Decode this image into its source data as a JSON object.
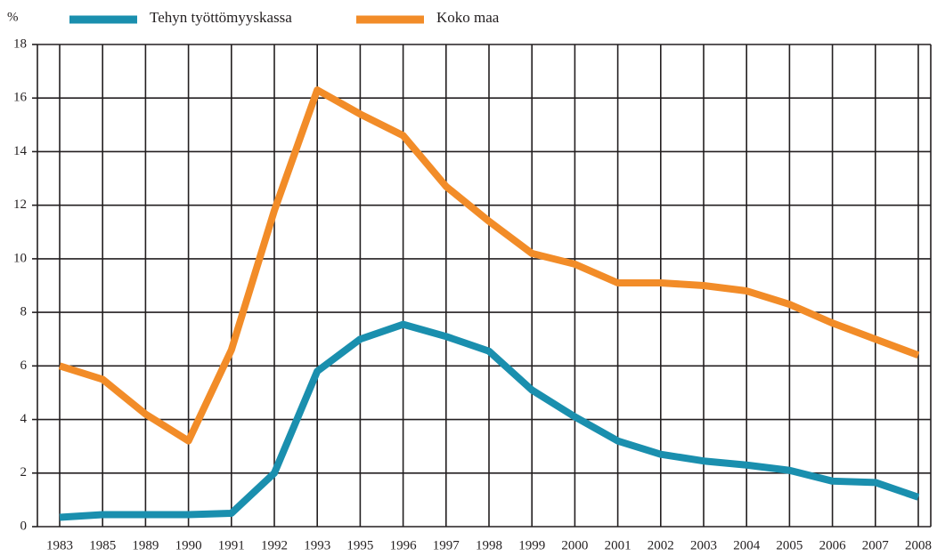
{
  "chart_data": {
    "type": "line",
    "y_label": "%",
    "categories": [
      "1983",
      "1985",
      "1989",
      "1990",
      "1991",
      "1992",
      "1993",
      "1995",
      "1996",
      "1997",
      "1998",
      "1999",
      "2000",
      "2001",
      "2002",
      "2003",
      "2004",
      "2005",
      "2006",
      "2007",
      "2008"
    ],
    "series": [
      {
        "name": "Tehyn työttömyyskassa",
        "color": "#1a8fae",
        "values": [
          0.35,
          0.45,
          0.45,
          0.45,
          0.5,
          2.0,
          5.8,
          7.0,
          7.55,
          7.1,
          6.55,
          5.1,
          4.1,
          3.2,
          2.7,
          2.45,
          2.3,
          2.1,
          1.7,
          1.65,
          1.1
        ]
      },
      {
        "name": "Koko maa",
        "color": "#f28c28",
        "values": [
          6.0,
          5.5,
          4.2,
          3.2,
          6.6,
          11.8,
          16.3,
          15.4,
          14.6,
          12.7,
          11.4,
          10.2,
          9.8,
          9.1,
          9.1,
          9.0,
          8.8,
          8.3,
          7.6,
          7.0,
          6.4
        ]
      }
    ],
    "ylim": [
      0,
      18
    ],
    "yticks": [
      0,
      2,
      4,
      6,
      8,
      10,
      12,
      14,
      16,
      18
    ],
    "grid": true
  }
}
